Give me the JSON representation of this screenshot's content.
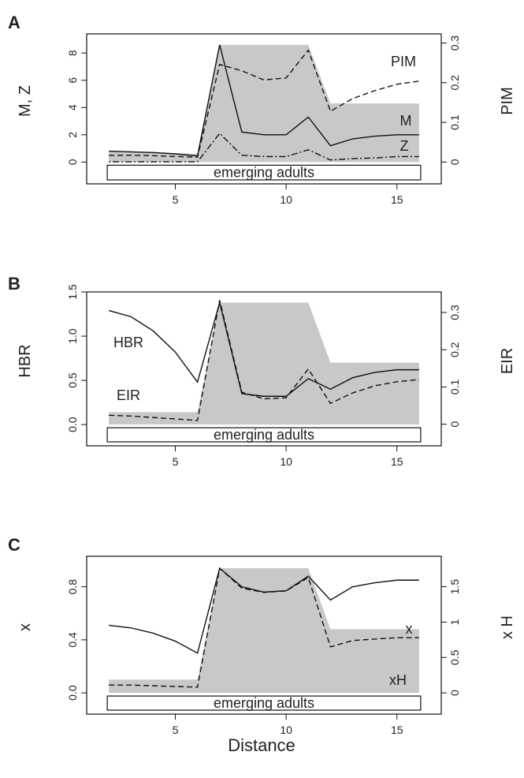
{
  "x_axis_label": "Distance",
  "chart_data": [
    {
      "type": "line",
      "panel_label": "A",
      "ylabel": "M, Z",
      "ylabel2": "PIM",
      "x": [
        2,
        3,
        4,
        5,
        6,
        7,
        8,
        9,
        10,
        11,
        12,
        13,
        14,
        15,
        16
      ],
      "xlim": [
        1,
        17
      ],
      "xticks": [
        5,
        10,
        15
      ],
      "ylim": [
        -1.6,
        9.4
      ],
      "yticks": [
        0,
        2,
        4,
        6,
        8
      ],
      "ylim2": [
        -0.055,
        0.323
      ],
      "yticks2": [
        0,
        0.1,
        0.2,
        0.3
      ],
      "ytick2_labels": [
        "0",
        "0.1",
        "0.2",
        "0.3"
      ],
      "box_label": "emerging adults",
      "shaded_habitat": {
        "x": [
          2,
          6,
          7,
          11,
          12,
          16
        ],
        "top": [
          0.8,
          0.6,
          8.6,
          8.6,
          4.3,
          4.3
        ]
      },
      "series": [
        {
          "name": "M",
          "axis": "left",
          "style": "solid",
          "values": [
            0.8,
            0.75,
            0.7,
            0.6,
            0.45,
            8.6,
            2.2,
            2.0,
            2.0,
            3.3,
            1.2,
            1.7,
            1.9,
            2.0,
            2.0
          ]
        },
        {
          "name": "PIM",
          "axis": "right",
          "style": "dashed",
          "values": [
            0.017,
            0.017,
            0.016,
            0.014,
            0.012,
            0.246,
            0.23,
            0.207,
            0.212,
            0.282,
            0.128,
            0.16,
            0.18,
            0.196,
            0.204
          ]
        },
        {
          "name": "Z",
          "axis": "left",
          "style": "dotdash",
          "values": [
            0.02,
            0.02,
            0.02,
            0.02,
            0.02,
            2.1,
            0.5,
            0.4,
            0.4,
            0.9,
            0.15,
            0.25,
            0.3,
            0.4,
            0.4
          ]
        }
      ]
    },
    {
      "type": "line",
      "panel_label": "B",
      "ylabel": "HBR",
      "ylabel2": "EIR",
      "x": [
        2,
        3,
        4,
        5,
        6,
        7,
        8,
        9,
        10,
        11,
        12,
        13,
        14,
        15,
        16
      ],
      "xlim": [
        1,
        17
      ],
      "xticks": [
        5,
        10,
        15
      ],
      "ylim": [
        -0.24,
        1.5
      ],
      "yticks": [
        0,
        0.5,
        1,
        1.5
      ],
      "ytick_labels": [
        "0.0",
        "0.5",
        "1.0",
        "1.5"
      ],
      "ylim2": [
        -0.058,
        0.355
      ],
      "yticks2": [
        0,
        0.1,
        0.2,
        0.3
      ],
      "ytick2_labels": [
        "0",
        "0.1",
        "0.2",
        "0.3"
      ],
      "box_label": "emerging adults",
      "shaded_habitat": {
        "x": [
          2,
          6,
          7,
          11,
          12,
          16
        ],
        "top": [
          0.14,
          0.14,
          1.38,
          1.38,
          0.7,
          0.7
        ]
      },
      "series": [
        {
          "name": "HBR",
          "axis": "left",
          "style": "solid",
          "values": [
            1.29,
            1.22,
            1.06,
            0.82,
            0.48,
            1.38,
            0.35,
            0.32,
            0.32,
            0.52,
            0.4,
            0.53,
            0.59,
            0.62,
            0.62
          ]
        },
        {
          "name": "EIR",
          "axis": "right",
          "style": "dashed",
          "values": [
            0.024,
            0.022,
            0.018,
            0.014,
            0.01,
            0.333,
            0.086,
            0.068,
            0.071,
            0.148,
            0.056,
            0.084,
            0.103,
            0.114,
            0.12
          ]
        }
      ]
    },
    {
      "type": "line",
      "panel_label": "C",
      "ylabel": "x",
      "ylabel2": "x H",
      "x": [
        2,
        3,
        4,
        5,
        6,
        7,
        8,
        9,
        10,
        11,
        12,
        13,
        14,
        15,
        16
      ],
      "xlim": [
        1,
        17
      ],
      "xticks": [
        5,
        10,
        15
      ],
      "ylim": [
        -0.16,
        1.03
      ],
      "yticks": [
        0,
        0.4,
        0.8
      ],
      "ytick_labels": [
        "0.0",
        "0.4",
        "0.8"
      ],
      "ylim2": [
        -0.3,
        1.93
      ],
      "yticks2": [
        0,
        0.5,
        1,
        1.5
      ],
      "ytick2_labels": [
        "0",
        "0.5",
        "1",
        "1.5"
      ],
      "box_label": "emerging adults",
      "shaded_habitat": {
        "x": [
          2,
          6,
          7,
          11,
          12,
          16
        ],
        "top": [
          0.1,
          0.1,
          0.94,
          0.94,
          0.48,
          0.48
        ]
      },
      "series": [
        {
          "name": "x",
          "axis": "left",
          "style": "solid",
          "values": [
            0.51,
            0.49,
            0.45,
            0.39,
            0.3,
            0.94,
            0.8,
            0.76,
            0.77,
            0.88,
            0.7,
            0.8,
            0.83,
            0.85,
            0.85
          ]
        },
        {
          "name": "xH",
          "axis": "right",
          "style": "dashed",
          "values": [
            0.11,
            0.11,
            0.1,
            0.09,
            0.08,
            1.76,
            1.48,
            1.42,
            1.44,
            1.63,
            0.65,
            0.74,
            0.76,
            0.78,
            0.78
          ]
        }
      ]
    }
  ]
}
